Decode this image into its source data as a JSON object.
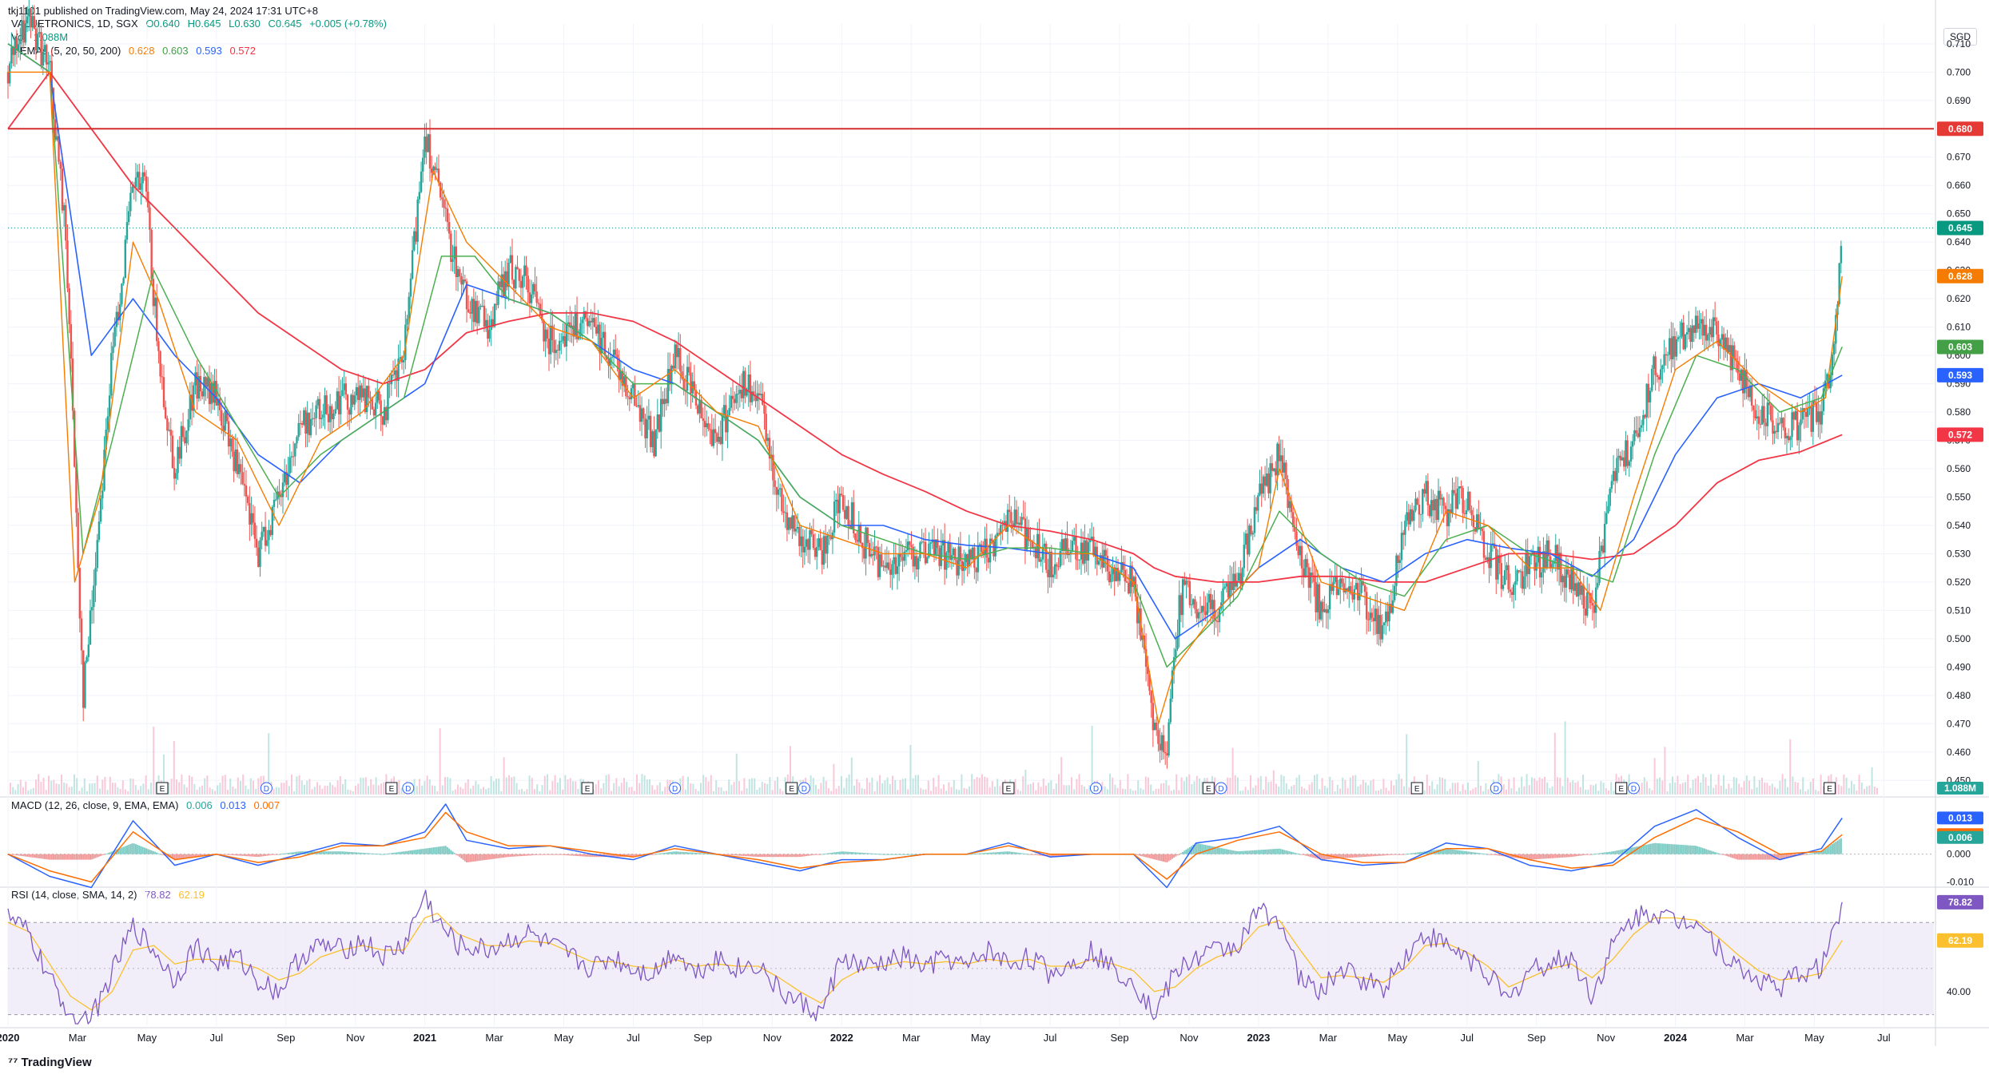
{
  "header": {
    "published": "tkj1101 published on TradingView.com, May 24, 2024 17:31 UTC+8",
    "symbol": "VALUETRONICS, 1D, SGX",
    "ohlc": {
      "open": "O0.640",
      "high": "H0.645",
      "low": "L0.630",
      "close": "C0.645",
      "change": "+0.005 (+0.78%)"
    },
    "volume": {
      "label": "Vol",
      "value": "1.088M"
    },
    "emas": {
      "label": "4 EMAs (5, 20, 50, 200)",
      "values": [
        "0.628",
        "0.603",
        "0.593",
        "0.572"
      ]
    },
    "macd": {
      "label": "MACD (12, 26, close, 9, EMA, EMA)",
      "values": [
        "0.006",
        "0.013",
        "0.007"
      ]
    },
    "rsi": {
      "label": "RSI (14, close, SMA, 14, 2)",
      "values": [
        "78.82",
        "62.19"
      ]
    }
  },
  "currency": "SGD",
  "footer": {
    "logo": "TradingView"
  },
  "colors": {
    "up": "#26a69a",
    "down": "#ef5350",
    "ema5": "#f57c00",
    "ema20": "#4caf50",
    "ema50": "#2962ff",
    "ema200": "#f23645",
    "macd": "#2962ff",
    "signal": "#ff6d00",
    "rsi": "#7e57c2",
    "rsi_ma": "#fbc02d",
    "resistance": "#d32f2f"
  },
  "chart_data": {
    "type": "line",
    "instrument": "VALUETRONICS 1D SGX",
    "x_ticks": [
      "2020",
      "Mar",
      "May",
      "Jul",
      "Sep",
      "Nov",
      "2021",
      "Mar",
      "May",
      "Jul",
      "Sep",
      "Nov",
      "2022",
      "Mar",
      "May",
      "Jul",
      "Sep",
      "Nov",
      "2023",
      "Mar",
      "May",
      "Jul",
      "Sep",
      "Nov",
      "2024",
      "Mar",
      "May",
      "Jul"
    ],
    "price_axis": {
      "ticks": [
        "0.710",
        "0.700",
        "0.690",
        "0.680",
        "0.670",
        "0.660",
        "0.650",
        "0.640",
        "0.630",
        "0.620",
        "0.610",
        "0.600",
        "0.590",
        "0.580",
        "0.570",
        "0.560",
        "0.550",
        "0.540",
        "0.530",
        "0.520",
        "0.510",
        "0.500",
        "0.490",
        "0.480",
        "0.470",
        "0.460",
        "0.450"
      ],
      "range": [
        0.445,
        0.717
      ]
    },
    "price_labels": [
      {
        "text": "0.680",
        "value": 0.68,
        "color": "#e53935"
      },
      {
        "text": "0.645",
        "value": 0.645,
        "color": "#089981"
      },
      {
        "text": "0.628",
        "value": 0.628,
        "color": "#f57c00"
      },
      {
        "text": "0.603",
        "value": 0.603,
        "color": "#43a047"
      },
      {
        "text": "0.593",
        "value": 0.593,
        "color": "#2962ff"
      },
      {
        "text": "0.572",
        "value": 0.572,
        "color": "#f23645"
      }
    ],
    "resistance": 0.68,
    "last_price": 0.645,
    "close_series": {
      "x": [
        2020.0,
        2020.05,
        2020.1,
        2020.14,
        2020.18,
        2020.2,
        2020.25,
        2020.3,
        2020.33,
        2020.36,
        2020.4,
        2020.45,
        2020.5,
        2020.55,
        2020.6,
        2020.65,
        2020.7,
        2020.75,
        2020.8,
        2020.85,
        2020.9,
        2020.95,
        2021.0,
        2021.03,
        2021.06,
        2021.1,
        2021.15,
        2021.2,
        2021.25,
        2021.3,
        2021.35,
        2021.4,
        2021.45,
        2021.5,
        2021.55,
        2021.6,
        2021.65,
        2021.7,
        2021.75,
        2021.8,
        2021.85,
        2021.9,
        2021.95,
        2022.0,
        2022.05,
        2022.1,
        2022.15,
        2022.2,
        2022.25,
        2022.3,
        2022.35,
        2022.4,
        2022.45,
        2022.5,
        2022.55,
        2022.6,
        2022.65,
        2022.7,
        2022.75,
        2022.78,
        2022.8,
        2022.82,
        2022.85,
        2022.9,
        2022.95,
        2023.0,
        2023.05,
        2023.1,
        2023.15,
        2023.2,
        2023.25,
        2023.3,
        2023.35,
        2023.4,
        2023.45,
        2023.5,
        2023.55,
        2023.6,
        2023.65,
        2023.7,
        2023.75,
        2023.8,
        2023.85,
        2023.9,
        2023.95,
        2024.0,
        2024.05,
        2024.1,
        2024.15,
        2024.2,
        2024.25,
        2024.3,
        2024.35,
        2024.38,
        2024.4
      ],
      "y": [
        0.7,
        0.72,
        0.7,
        0.64,
        0.48,
        0.51,
        0.6,
        0.66,
        0.66,
        0.6,
        0.56,
        0.59,
        0.585,
        0.56,
        0.53,
        0.55,
        0.575,
        0.58,
        0.585,
        0.585,
        0.58,
        0.6,
        0.68,
        0.66,
        0.64,
        0.62,
        0.61,
        0.63,
        0.625,
        0.605,
        0.61,
        0.61,
        0.6,
        0.585,
        0.57,
        0.6,
        0.585,
        0.57,
        0.59,
        0.585,
        0.55,
        0.535,
        0.53,
        0.55,
        0.535,
        0.525,
        0.53,
        0.53,
        0.53,
        0.525,
        0.53,
        0.545,
        0.535,
        0.525,
        0.535,
        0.53,
        0.525,
        0.52,
        0.47,
        0.46,
        0.5,
        0.52,
        0.51,
        0.51,
        0.52,
        0.55,
        0.565,
        0.53,
        0.51,
        0.52,
        0.515,
        0.5,
        0.54,
        0.55,
        0.545,
        0.55,
        0.53,
        0.52,
        0.525,
        0.53,
        0.52,
        0.51,
        0.555,
        0.57,
        0.595,
        0.605,
        0.61,
        0.61,
        0.595,
        0.58,
        0.575,
        0.575,
        0.58,
        0.6,
        0.645
      ]
    },
    "ema5": {
      "x": [
        2020.0,
        2020.1,
        2020.16,
        2020.22,
        2020.3,
        2020.36,
        2020.45,
        2020.55,
        2020.65,
        2020.75,
        2020.85,
        2020.95,
        2021.02,
        2021.1,
        2021.2,
        2021.3,
        2021.4,
        2021.5,
        2021.6,
        2021.7,
        2021.8,
        2021.9,
        2022.0,
        2022.1,
        2022.2,
        2022.3,
        2022.4,
        2022.5,
        2022.6,
        2022.7,
        2022.76,
        2022.8,
        2022.9,
        2023.0,
        2023.05,
        2023.15,
        2023.25,
        2023.35,
        2023.45,
        2023.55,
        2023.65,
        2023.75,
        2023.82,
        2023.9,
        2024.0,
        2024.1,
        2024.2,
        2024.3,
        2024.36,
        2024.4
      ],
      "y": [
        0.7,
        0.7,
        0.52,
        0.55,
        0.64,
        0.62,
        0.58,
        0.57,
        0.54,
        0.57,
        0.58,
        0.6,
        0.665,
        0.64,
        0.625,
        0.61,
        0.605,
        0.585,
        0.595,
        0.58,
        0.575,
        0.54,
        0.535,
        0.53,
        0.53,
        0.525,
        0.54,
        0.53,
        0.53,
        0.52,
        0.47,
        0.49,
        0.51,
        0.525,
        0.56,
        0.52,
        0.515,
        0.51,
        0.545,
        0.54,
        0.525,
        0.525,
        0.51,
        0.55,
        0.595,
        0.605,
        0.59,
        0.58,
        0.585,
        0.628
      ]
    },
    "ema20": {
      "x": [
        2020.0,
        2020.1,
        2020.18,
        2020.25,
        2020.35,
        2020.45,
        2020.55,
        2020.65,
        2020.75,
        2020.85,
        2020.95,
        2021.04,
        2021.12,
        2021.2,
        2021.3,
        2021.4,
        2021.5,
        2021.6,
        2021.7,
        2021.8,
        2021.9,
        2022.0,
        2022.1,
        2022.2,
        2022.3,
        2022.4,
        2022.5,
        2022.6,
        2022.7,
        2022.78,
        2022.85,
        2022.95,
        2023.05,
        2023.15,
        2023.25,
        2023.35,
        2023.45,
        2023.55,
        2023.65,
        2023.75,
        2023.85,
        2023.95,
        2024.05,
        2024.15,
        2024.25,
        2024.35,
        2024.4
      ],
      "y": [
        0.71,
        0.7,
        0.53,
        0.57,
        0.63,
        0.6,
        0.575,
        0.55,
        0.565,
        0.575,
        0.585,
        0.635,
        0.635,
        0.62,
        0.615,
        0.605,
        0.59,
        0.59,
        0.58,
        0.57,
        0.55,
        0.54,
        0.535,
        0.53,
        0.528,
        0.532,
        0.532,
        0.53,
        0.52,
        0.49,
        0.5,
        0.515,
        0.545,
        0.53,
        0.52,
        0.515,
        0.535,
        0.54,
        0.53,
        0.525,
        0.52,
        0.565,
        0.6,
        0.595,
        0.58,
        0.585,
        0.603
      ]
    },
    "ema50": {
      "x": [
        2020.0,
        2020.1,
        2020.2,
        2020.3,
        2020.4,
        2020.5,
        2020.6,
        2020.7,
        2020.8,
        2020.9,
        2021.0,
        2021.1,
        2021.2,
        2021.3,
        2021.4,
        2021.5,
        2021.6,
        2021.7,
        2021.8,
        2021.9,
        2022.0,
        2022.1,
        2022.2,
        2022.3,
        2022.4,
        2022.5,
        2022.6,
        2022.7,
        2022.8,
        2022.9,
        2023.0,
        2023.1,
        2023.2,
        2023.3,
        2023.4,
        2023.5,
        2023.6,
        2023.7,
        2023.8,
        2023.9,
        2024.0,
        2024.1,
        2024.2,
        2024.3,
        2024.4
      ],
      "y": [
        0.71,
        0.7,
        0.6,
        0.62,
        0.6,
        0.585,
        0.565,
        0.555,
        0.57,
        0.58,
        0.59,
        0.625,
        0.62,
        0.615,
        0.605,
        0.595,
        0.59,
        0.58,
        0.57,
        0.55,
        0.54,
        0.54,
        0.535,
        0.533,
        0.532,
        0.53,
        0.53,
        0.525,
        0.5,
        0.51,
        0.525,
        0.535,
        0.525,
        0.52,
        0.53,
        0.535,
        0.532,
        0.53,
        0.522,
        0.535,
        0.565,
        0.585,
        0.59,
        0.585,
        0.593
      ]
    },
    "ema200": {
      "x": [
        2020.0,
        2020.1,
        2020.2,
        2020.3,
        2020.4,
        2020.5,
        2020.6,
        2020.7,
        2020.8,
        2020.9,
        2021.0,
        2021.1,
        2021.2,
        2021.3,
        2021.4,
        2021.5,
        2021.6,
        2021.7,
        2021.8,
        2021.9,
        2022.0,
        2022.1,
        2022.2,
        2022.3,
        2022.4,
        2022.5,
        2022.6,
        2022.7,
        2022.75,
        2022.8,
        2022.9,
        2023.0,
        2023.1,
        2023.2,
        2023.3,
        2023.4,
        2023.5,
        2023.6,
        2023.7,
        2023.8,
        2023.9,
        2024.0,
        2024.1,
        2024.2,
        2024.3,
        2024.4
      ],
      "y": [
        0.68,
        0.7,
        0.68,
        0.66,
        0.645,
        0.63,
        0.615,
        0.605,
        0.595,
        0.59,
        0.595,
        0.608,
        0.612,
        0.615,
        0.615,
        0.612,
        0.605,
        0.595,
        0.585,
        0.575,
        0.565,
        0.558,
        0.552,
        0.545,
        0.54,
        0.538,
        0.535,
        0.53,
        0.525,
        0.522,
        0.52,
        0.52,
        0.522,
        0.522,
        0.52,
        0.52,
        0.525,
        0.53,
        0.53,
        0.528,
        0.53,
        0.54,
        0.555,
        0.563,
        0.566,
        0.572
      ]
    },
    "macd": {
      "range": [
        -0.011,
        0.02
      ],
      "ticks": [
        "0.000",
        "-0.010"
      ],
      "labels": [
        {
          "text": "0.013",
          "value": 0.013,
          "color": "#2962ff"
        },
        {
          "text": "0.007",
          "value": 0.007,
          "color": "#ff6d00"
        },
        {
          "text": "0.006",
          "value": 0.006,
          "color": "#26a69a"
        }
      ],
      "x": [
        2020.0,
        2020.1,
        2020.2,
        2020.3,
        2020.4,
        2020.5,
        2020.6,
        2020.7,
        2020.8,
        2020.9,
        2021.0,
        2021.05,
        2021.1,
        2021.2,
        2021.3,
        2021.4,
        2021.5,
        2021.6,
        2021.7,
        2021.8,
        2021.9,
        2022.0,
        2022.1,
        2022.2,
        2022.3,
        2022.4,
        2022.5,
        2022.6,
        2022.7,
        2022.78,
        2022.85,
        2022.95,
        2023.05,
        2023.15,
        2023.25,
        2023.35,
        2023.45,
        2023.55,
        2023.65,
        2023.75,
        2023.85,
        2023.95,
        2024.05,
        2024.15,
        2024.25,
        2024.35,
        2024.4
      ],
      "macd_line": [
        0.0,
        -0.008,
        -0.012,
        0.012,
        -0.004,
        0.0,
        -0.004,
        0.0,
        0.004,
        0.003,
        0.008,
        0.018,
        0.005,
        0.002,
        0.003,
        0.0,
        -0.002,
        0.003,
        0.0,
        -0.003,
        -0.006,
        -0.002,
        -0.002,
        0.0,
        0.0,
        0.004,
        -0.001,
        0.0,
        0.0,
        -0.012,
        0.004,
        0.006,
        0.01,
        -0.002,
        -0.004,
        -0.003,
        0.004,
        0.002,
        -0.004,
        -0.006,
        -0.003,
        0.01,
        0.016,
        0.006,
        -0.002,
        0.002,
        0.013
      ],
      "signal_line": [
        0.0,
        -0.006,
        -0.01,
        0.008,
        -0.002,
        0.0,
        -0.003,
        -0.001,
        0.003,
        0.003,
        0.006,
        0.015,
        0.008,
        0.003,
        0.003,
        0.001,
        -0.001,
        0.002,
        0.0,
        -0.002,
        -0.005,
        -0.003,
        -0.002,
        0.0,
        0.0,
        0.003,
        0.0,
        0.0,
        0.0,
        -0.009,
        0.0,
        0.005,
        0.008,
        0.0,
        -0.003,
        -0.003,
        0.002,
        0.002,
        -0.002,
        -0.005,
        -0.004,
        0.006,
        0.013,
        0.008,
        0.0,
        0.001,
        0.007
      ]
    },
    "rsi": {
      "range": [
        25,
        85
      ],
      "ticks": [
        "40.00"
      ],
      "bands": [
        70,
        50,
        30
      ],
      "labels": [
        {
          "text": "78.82",
          "value": 78.82,
          "color": "#7e57c2"
        },
        {
          "text": "62.19",
          "value": 62.19,
          "color": "#fbc02d"
        }
      ],
      "x": [
        2020.0,
        2020.05,
        2020.1,
        2020.15,
        2020.2,
        2020.25,
        2020.3,
        2020.35,
        2020.4,
        2020.45,
        2020.5,
        2020.55,
        2020.6,
        2020.65,
        2020.7,
        2020.75,
        2020.8,
        2020.85,
        2020.9,
        2020.95,
        2021.0,
        2021.03,
        2021.08,
        2021.15,
        2021.2,
        2021.25,
        2021.3,
        2021.35,
        2021.4,
        2021.45,
        2021.5,
        2021.55,
        2021.6,
        2021.65,
        2021.7,
        2021.75,
        2021.8,
        2021.85,
        2021.9,
        2021.95,
        2022.0,
        2022.05,
        2022.1,
        2022.15,
        2022.2,
        2022.25,
        2022.3,
        2022.35,
        2022.4,
        2022.45,
        2022.5,
        2022.55,
        2022.6,
        2022.65,
        2022.7,
        2022.75,
        2022.8,
        2022.85,
        2022.9,
        2022.95,
        2023.0,
        2023.05,
        2023.1,
        2023.15,
        2023.2,
        2023.25,
        2023.3,
        2023.35,
        2023.4,
        2023.45,
        2023.5,
        2023.55,
        2023.6,
        2023.65,
        2023.7,
        2023.75,
        2023.8,
        2023.85,
        2023.9,
        2023.95,
        2024.0,
        2024.05,
        2024.1,
        2024.15,
        2024.2,
        2024.25,
        2024.3,
        2024.35,
        2024.4
      ],
      "rsi_line": [
        72,
        65,
        45,
        30,
        28,
        48,
        68,
        58,
        45,
        60,
        52,
        55,
        45,
        40,
        55,
        60,
        58,
        62,
        55,
        60,
        82,
        70,
        60,
        58,
        62,
        65,
        60,
        55,
        50,
        55,
        50,
        48,
        58,
        48,
        55,
        50,
        52,
        40,
        35,
        30,
        55,
        50,
        52,
        55,
        50,
        55,
        50,
        58,
        52,
        55,
        48,
        52,
        58,
        50,
        45,
        30,
        48,
        55,
        58,
        60,
        75,
        72,
        45,
        40,
        50,
        45,
        42,
        55,
        65,
        60,
        55,
        48,
        35,
        50,
        52,
        55,
        38,
        60,
        72,
        75,
        70,
        72,
        60,
        50,
        45,
        42,
        48,
        50,
        78.82
      ],
      "rsi_ma": [
        70,
        66,
        52,
        38,
        32,
        40,
        58,
        60,
        52,
        54,
        54,
        53,
        50,
        45,
        48,
        55,
        58,
        60,
        58,
        58,
        72,
        74,
        65,
        60,
        60,
        62,
        61,
        57,
        53,
        53,
        51,
        50,
        54,
        51,
        52,
        51,
        51,
        46,
        40,
        35,
        45,
        50,
        51,
        53,
        52,
        53,
        52,
        54,
        53,
        54,
        51,
        51,
        54,
        52,
        49,
        40,
        42,
        50,
        55,
        58,
        68,
        71,
        58,
        46,
        47,
        46,
        44,
        50,
        60,
        61,
        57,
        51,
        42,
        46,
        50,
        52,
        46,
        54,
        65,
        72,
        72,
        71,
        64,
        56,
        49,
        45,
        46,
        48,
        62.19
      ]
    },
    "events": [
      {
        "type": "E",
        "x": 2020.37
      },
      {
        "type": "D",
        "x": 2020.62
      },
      {
        "type": "E",
        "x": 2020.92
      },
      {
        "type": "D",
        "x": 2020.96
      },
      {
        "type": "E",
        "x": 2021.39
      },
      {
        "type": "D",
        "x": 2021.6
      },
      {
        "type": "E",
        "x": 2021.88
      },
      {
        "type": "D",
        "x": 2021.91
      },
      {
        "type": "E",
        "x": 2022.4
      },
      {
        "type": "D",
        "x": 2022.61
      },
      {
        "type": "E",
        "x": 2022.88
      },
      {
        "type": "D",
        "x": 2022.91
      },
      {
        "type": "E",
        "x": 2023.38
      },
      {
        "type": "D",
        "x": 2023.57
      },
      {
        "type": "E",
        "x": 2023.87
      },
      {
        "type": "D",
        "x": 2023.9
      },
      {
        "type": "E",
        "x": 2024.37
      }
    ],
    "volume_label": "1.088M"
  }
}
